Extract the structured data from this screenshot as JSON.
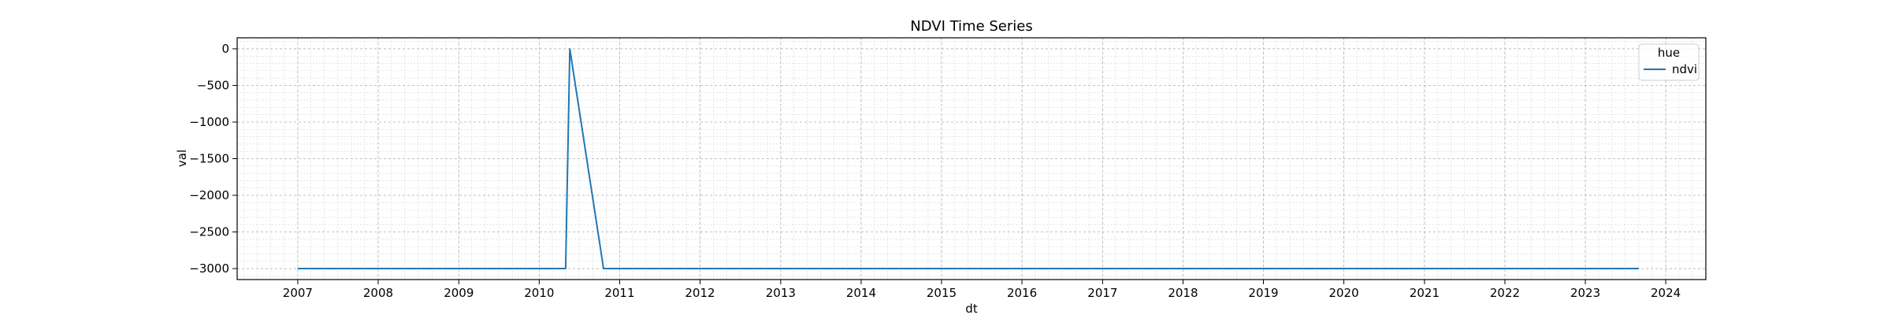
{
  "chart_data": {
    "type": "line",
    "title": "NDVI Time Series",
    "xlabel": "dt",
    "ylabel": "val",
    "legend": {
      "title": "hue",
      "position": "top-right",
      "entries": [
        "ndvi"
      ]
    },
    "xlim": [
      "2006-04-01",
      "2024-07-01"
    ],
    "ylim": [
      -3150,
      150
    ],
    "x_ticks": [
      "2007",
      "2008",
      "2009",
      "2010",
      "2011",
      "2012",
      "2013",
      "2014",
      "2015",
      "2016",
      "2017",
      "2018",
      "2019",
      "2020",
      "2021",
      "2022",
      "2023",
      "2024"
    ],
    "y_ticks": [
      0,
      -500,
      -1000,
      -1500,
      -2000,
      -2500,
      -3000
    ],
    "y_tick_labels": [
      "0",
      "−500",
      "−1000",
      "−1500",
      "−2000",
      "−2500",
      "−3000"
    ],
    "grid": true,
    "minor_grid": true,
    "series": [
      {
        "name": "ndvi",
        "color": "#1f77b4",
        "points": [
          {
            "x": "2007-01-01",
            "y": -3000
          },
          {
            "x": "2010-05-01",
            "y": -3000
          },
          {
            "x": "2010-05-20",
            "y": 0
          },
          {
            "x": "2010-10-20",
            "y": -3000
          },
          {
            "x": "2023-09-01",
            "y": -3000
          }
        ]
      }
    ]
  }
}
